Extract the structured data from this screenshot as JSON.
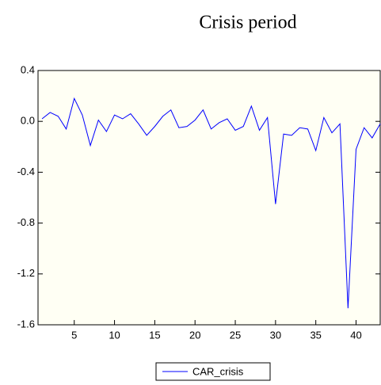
{
  "chart_data": {
    "type": "line",
    "title": "Crisis period",
    "x": [
      1,
      2,
      3,
      4,
      5,
      6,
      7,
      8,
      9,
      10,
      11,
      12,
      13,
      14,
      15,
      16,
      17,
      18,
      19,
      20,
      21,
      22,
      23,
      24,
      25,
      26,
      27,
      28,
      29,
      30,
      31,
      32,
      33,
      34,
      35,
      36,
      37,
      38,
      39,
      40,
      41,
      42,
      43
    ],
    "series": [
      {
        "name": "CAR_crisis",
        "color": "#0000ff",
        "values": [
          0.02,
          0.07,
          0.04,
          -0.06,
          0.18,
          0.05,
          -0.19,
          0.01,
          -0.08,
          0.05,
          0.02,
          0.06,
          -0.02,
          -0.11,
          -0.04,
          0.04,
          0.09,
          -0.05,
          -0.04,
          0.01,
          0.09,
          -0.06,
          -0.01,
          0.02,
          -0.07,
          -0.04,
          0.12,
          -0.07,
          0.03,
          -0.65,
          -0.1,
          -0.11,
          -0.05,
          -0.06,
          -0.23,
          0.03,
          -0.09,
          -0.02,
          -1.47,
          -0.22,
          -0.05,
          -0.13,
          -0.02
        ]
      }
    ],
    "xlim": [
      0.5,
      43
    ],
    "xticks": [
      5,
      10,
      15,
      20,
      25,
      30,
      35,
      40
    ],
    "ylim": [
      -1.6,
      0.4
    ],
    "yticks": [
      0.4,
      {
        "value": 0,
        "label": "0.0"
      },
      -0.4,
      -0.8,
      -1.2,
      -1.6
    ],
    "legend": "bottom"
  }
}
